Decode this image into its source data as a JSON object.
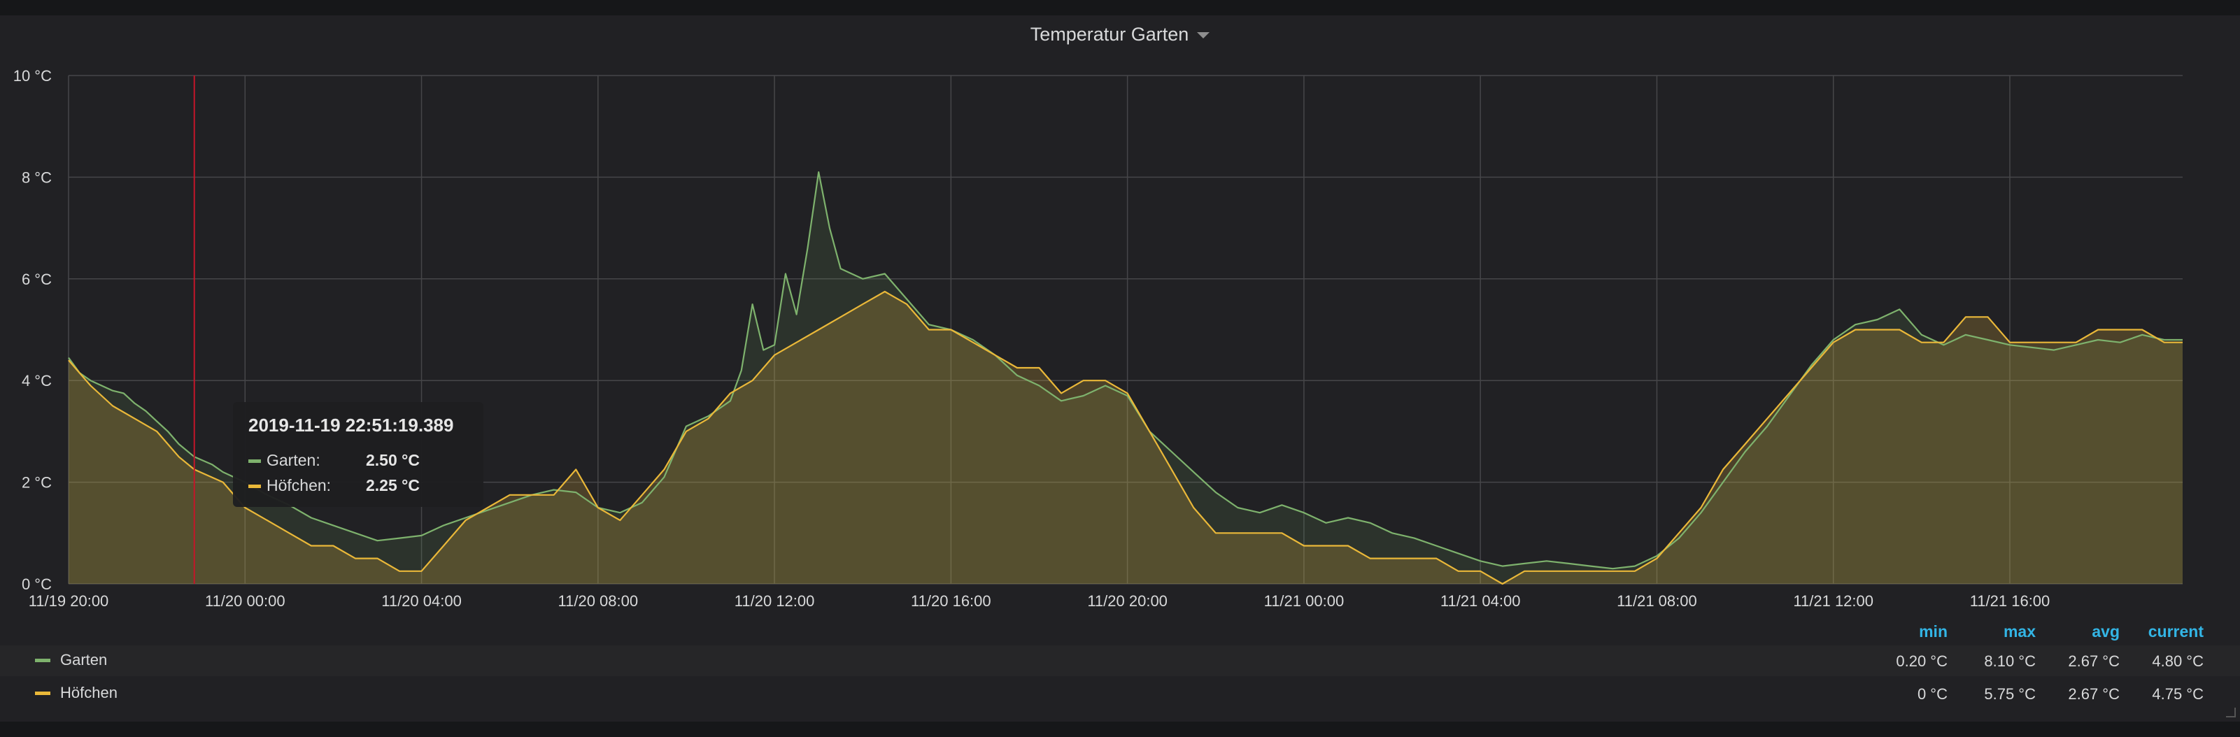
{
  "panel": {
    "title": "Temperatur Garten"
  },
  "chart_data": {
    "type": "line",
    "title": "Temperatur Garten",
    "x_unit": "datetime",
    "x_range": [
      "2019-11-19 20:00",
      "2019-11-21 19:55"
    ],
    "ylim": [
      0,
      10
    ],
    "y_ticks": [
      "0 °C",
      "2 °C",
      "4 °C",
      "6 °C",
      "8 °C",
      "10 °C"
    ],
    "x_ticks": [
      "11/19 20:00",
      "11/20 00:00",
      "11/20 04:00",
      "11/20 08:00",
      "11/20 12:00",
      "11/20 16:00",
      "11/20 20:00",
      "11/21 00:00",
      "11/21 04:00",
      "11/21 08:00",
      "11/21 12:00",
      "11/21 16:00"
    ],
    "grid": true,
    "cursor_time": "2019-11-19 22:51",
    "series": [
      {
        "name": "Garten",
        "color": "#7eb26d",
        "points": [
          [
            "2019-11-19 20:00",
            4.45
          ],
          [
            "2019-11-19 20:15",
            4.15
          ],
          [
            "2019-11-19 20:30",
            4.0
          ],
          [
            "2019-11-19 20:45",
            3.9
          ],
          [
            "2019-11-19 21:00",
            3.8
          ],
          [
            "2019-11-19 21:15",
            3.75
          ],
          [
            "2019-11-19 21:30",
            3.55
          ],
          [
            "2019-11-19 21:45",
            3.4
          ],
          [
            "2019-11-19 22:00",
            3.2
          ],
          [
            "2019-11-19 22:15",
            3.0
          ],
          [
            "2019-11-19 22:30",
            2.75
          ],
          [
            "2019-11-19 22:51",
            2.5
          ],
          [
            "2019-11-19 23:15",
            2.35
          ],
          [
            "2019-11-19 23:30",
            2.2
          ],
          [
            "2019-11-20 00:00",
            2.0
          ],
          [
            "2019-11-20 00:30",
            1.75
          ],
          [
            "2019-11-20 01:00",
            1.55
          ],
          [
            "2019-11-20 01:30",
            1.3
          ],
          [
            "2019-11-20 02:00",
            1.15
          ],
          [
            "2019-11-20 02:30",
            1.0
          ],
          [
            "2019-11-20 03:00",
            0.85
          ],
          [
            "2019-11-20 03:30",
            0.9
          ],
          [
            "2019-11-20 04:00",
            0.95
          ],
          [
            "2019-11-20 04:30",
            1.15
          ],
          [
            "2019-11-20 05:00",
            1.3
          ],
          [
            "2019-11-20 05:30",
            1.45
          ],
          [
            "2019-11-20 06:00",
            1.6
          ],
          [
            "2019-11-20 06:30",
            1.75
          ],
          [
            "2019-11-20 07:00",
            1.85
          ],
          [
            "2019-11-20 07:30",
            1.8
          ],
          [
            "2019-11-20 08:00",
            1.5
          ],
          [
            "2019-11-20 08:30",
            1.4
          ],
          [
            "2019-11-20 09:00",
            1.6
          ],
          [
            "2019-11-20 09:30",
            2.1
          ],
          [
            "2019-11-20 10:00",
            3.1
          ],
          [
            "2019-11-20 10:30",
            3.3
          ],
          [
            "2019-11-20 11:00",
            3.6
          ],
          [
            "2019-11-20 11:15",
            4.2
          ],
          [
            "2019-11-20 11:30",
            5.5
          ],
          [
            "2019-11-20 11:45",
            4.6
          ],
          [
            "2019-11-20 12:00",
            4.7
          ],
          [
            "2019-11-20 12:15",
            6.1
          ],
          [
            "2019-11-20 12:30",
            5.3
          ],
          [
            "2019-11-20 12:45",
            6.6
          ],
          [
            "2019-11-20 13:00",
            8.1
          ],
          [
            "2019-11-20 13:15",
            7.0
          ],
          [
            "2019-11-20 13:30",
            6.2
          ],
          [
            "2019-11-20 14:00",
            6.0
          ],
          [
            "2019-11-20 14:30",
            6.1
          ],
          [
            "2019-11-20 15:00",
            5.6
          ],
          [
            "2019-11-20 15:30",
            5.1
          ],
          [
            "2019-11-20 16:00",
            5.0
          ],
          [
            "2019-11-20 16:30",
            4.8
          ],
          [
            "2019-11-20 17:00",
            4.5
          ],
          [
            "2019-11-20 17:30",
            4.1
          ],
          [
            "2019-11-20 18:00",
            3.9
          ],
          [
            "2019-11-20 18:30",
            3.6
          ],
          [
            "2019-11-20 19:00",
            3.7
          ],
          [
            "2019-11-20 19:30",
            3.9
          ],
          [
            "2019-11-20 20:00",
            3.7
          ],
          [
            "2019-11-20 20:30",
            3.0
          ],
          [
            "2019-11-20 21:00",
            2.6
          ],
          [
            "2019-11-20 21:30",
            2.2
          ],
          [
            "2019-11-20 22:00",
            1.8
          ],
          [
            "2019-11-20 22:30",
            1.5
          ],
          [
            "2019-11-20 23:00",
            1.4
          ],
          [
            "2019-11-20 23:30",
            1.55
          ],
          [
            "2019-11-21 00:00",
            1.4
          ],
          [
            "2019-11-21 00:30",
            1.2
          ],
          [
            "2019-11-21 01:00",
            1.3
          ],
          [
            "2019-11-21 01:30",
            1.2
          ],
          [
            "2019-11-21 02:00",
            1.0
          ],
          [
            "2019-11-21 02:30",
            0.9
          ],
          [
            "2019-11-21 03:00",
            0.75
          ],
          [
            "2019-11-21 03:30",
            0.6
          ],
          [
            "2019-11-21 04:00",
            0.45
          ],
          [
            "2019-11-21 04:30",
            0.35
          ],
          [
            "2019-11-21 05:00",
            0.4
          ],
          [
            "2019-11-21 05:30",
            0.45
          ],
          [
            "2019-11-21 06:00",
            0.4
          ],
          [
            "2019-11-21 06:30",
            0.35
          ],
          [
            "2019-11-21 07:00",
            0.3
          ],
          [
            "2019-11-21 07:30",
            0.35
          ],
          [
            "2019-11-21 08:00",
            0.55
          ],
          [
            "2019-11-21 08:30",
            0.9
          ],
          [
            "2019-11-21 09:00",
            1.4
          ],
          [
            "2019-11-21 09:30",
            2.0
          ],
          [
            "2019-11-21 10:00",
            2.6
          ],
          [
            "2019-11-21 10:30",
            3.1
          ],
          [
            "2019-11-21 11:00",
            3.7
          ],
          [
            "2019-11-21 11:30",
            4.3
          ],
          [
            "2019-11-21 12:00",
            4.8
          ],
          [
            "2019-11-21 12:30",
            5.1
          ],
          [
            "2019-11-21 13:00",
            5.2
          ],
          [
            "2019-11-21 13:30",
            5.4
          ],
          [
            "2019-11-21 14:00",
            4.9
          ],
          [
            "2019-11-21 14:30",
            4.7
          ],
          [
            "2019-11-21 15:00",
            4.9
          ],
          [
            "2019-11-21 15:30",
            4.8
          ],
          [
            "2019-11-21 16:00",
            4.7
          ],
          [
            "2019-11-21 16:30",
            4.65
          ],
          [
            "2019-11-21 17:00",
            4.6
          ],
          [
            "2019-11-21 17:30",
            4.7
          ],
          [
            "2019-11-21 18:00",
            4.8
          ],
          [
            "2019-11-21 18:30",
            4.75
          ],
          [
            "2019-11-21 19:00",
            4.9
          ],
          [
            "2019-11-21 19:30",
            4.8
          ],
          [
            "2019-11-21 19:55",
            4.8
          ]
        ]
      },
      {
        "name": "Höfchen",
        "color": "#eab839",
        "points": [
          [
            "2019-11-19 20:00",
            4.4
          ],
          [
            "2019-11-19 20:30",
            3.9
          ],
          [
            "2019-11-19 21:00",
            3.5
          ],
          [
            "2019-11-19 21:30",
            3.25
          ],
          [
            "2019-11-19 22:00",
            3.0
          ],
          [
            "2019-11-19 22:30",
            2.5
          ],
          [
            "2019-11-19 22:51",
            2.25
          ],
          [
            "2019-11-19 23:30",
            2.0
          ],
          [
            "2019-11-20 00:00",
            1.5
          ],
          [
            "2019-11-20 00:30",
            1.25
          ],
          [
            "2019-11-20 01:00",
            1.0
          ],
          [
            "2019-11-20 01:30",
            0.75
          ],
          [
            "2019-11-20 02:00",
            0.75
          ],
          [
            "2019-11-20 02:30",
            0.5
          ],
          [
            "2019-11-20 03:00",
            0.5
          ],
          [
            "2019-11-20 03:30",
            0.25
          ],
          [
            "2019-11-20 04:00",
            0.25
          ],
          [
            "2019-11-20 04:30",
            0.75
          ],
          [
            "2019-11-20 05:00",
            1.25
          ],
          [
            "2019-11-20 05:30",
            1.5
          ],
          [
            "2019-11-20 06:00",
            1.75
          ],
          [
            "2019-11-20 06:30",
            1.75
          ],
          [
            "2019-11-20 07:00",
            1.75
          ],
          [
            "2019-11-20 07:30",
            2.25
          ],
          [
            "2019-11-20 08:00",
            1.5
          ],
          [
            "2019-11-20 08:30",
            1.25
          ],
          [
            "2019-11-20 09:00",
            1.75
          ],
          [
            "2019-11-20 09:30",
            2.25
          ],
          [
            "2019-11-20 10:00",
            3.0
          ],
          [
            "2019-11-20 10:30",
            3.25
          ],
          [
            "2019-11-20 11:00",
            3.75
          ],
          [
            "2019-11-20 11:30",
            4.0
          ],
          [
            "2019-11-20 12:00",
            4.5
          ],
          [
            "2019-11-20 12:30",
            4.75
          ],
          [
            "2019-11-20 13:00",
            5.0
          ],
          [
            "2019-11-20 13:30",
            5.25
          ],
          [
            "2019-11-20 14:00",
            5.5
          ],
          [
            "2019-11-20 14:30",
            5.75
          ],
          [
            "2019-11-20 15:00",
            5.5
          ],
          [
            "2019-11-20 15:30",
            5.0
          ],
          [
            "2019-11-20 16:00",
            5.0
          ],
          [
            "2019-11-20 16:30",
            4.75
          ],
          [
            "2019-11-20 17:00",
            4.5
          ],
          [
            "2019-11-20 17:30",
            4.25
          ],
          [
            "2019-11-20 18:00",
            4.25
          ],
          [
            "2019-11-20 18:30",
            3.75
          ],
          [
            "2019-11-20 19:00",
            4.0
          ],
          [
            "2019-11-20 19:30",
            4.0
          ],
          [
            "2019-11-20 20:00",
            3.75
          ],
          [
            "2019-11-20 20:30",
            3.0
          ],
          [
            "2019-11-20 21:00",
            2.25
          ],
          [
            "2019-11-20 21:30",
            1.5
          ],
          [
            "2019-11-20 22:00",
            1.0
          ],
          [
            "2019-11-20 22:30",
            1.0
          ],
          [
            "2019-11-20 23:00",
            1.0
          ],
          [
            "2019-11-20 23:30",
            1.0
          ],
          [
            "2019-11-21 00:00",
            0.75
          ],
          [
            "2019-11-21 00:30",
            0.75
          ],
          [
            "2019-11-21 01:00",
            0.75
          ],
          [
            "2019-11-21 01:30",
            0.5
          ],
          [
            "2019-11-21 02:00",
            0.5
          ],
          [
            "2019-11-21 02:30",
            0.5
          ],
          [
            "2019-11-21 03:00",
            0.5
          ],
          [
            "2019-11-21 03:30",
            0.25
          ],
          [
            "2019-11-21 04:00",
            0.25
          ],
          [
            "2019-11-21 04:30",
            0.0
          ],
          [
            "2019-11-21 05:00",
            0.25
          ],
          [
            "2019-11-21 05:30",
            0.25
          ],
          [
            "2019-11-21 06:00",
            0.25
          ],
          [
            "2019-11-21 06:30",
            0.25
          ],
          [
            "2019-11-21 07:00",
            0.25
          ],
          [
            "2019-11-21 07:30",
            0.25
          ],
          [
            "2019-11-21 08:00",
            0.5
          ],
          [
            "2019-11-21 08:30",
            1.0
          ],
          [
            "2019-11-21 09:00",
            1.5
          ],
          [
            "2019-11-21 09:30",
            2.25
          ],
          [
            "2019-11-21 10:00",
            2.75
          ],
          [
            "2019-11-21 10:30",
            3.25
          ],
          [
            "2019-11-21 11:00",
            3.75
          ],
          [
            "2019-11-21 11:30",
            4.25
          ],
          [
            "2019-11-21 12:00",
            4.75
          ],
          [
            "2019-11-21 12:30",
            5.0
          ],
          [
            "2019-11-21 13:00",
            5.0
          ],
          [
            "2019-11-21 13:30",
            5.0
          ],
          [
            "2019-11-21 14:00",
            4.75
          ],
          [
            "2019-11-21 14:30",
            4.75
          ],
          [
            "2019-11-21 15:00",
            5.25
          ],
          [
            "2019-11-21 15:30",
            5.25
          ],
          [
            "2019-11-21 16:00",
            4.75
          ],
          [
            "2019-11-21 16:30",
            4.75
          ],
          [
            "2019-11-21 17:00",
            4.75
          ],
          [
            "2019-11-21 17:30",
            4.75
          ],
          [
            "2019-11-21 18:00",
            5.0
          ],
          [
            "2019-11-21 18:30",
            5.0
          ],
          [
            "2019-11-21 19:00",
            5.0
          ],
          [
            "2019-11-21 19:30",
            4.75
          ],
          [
            "2019-11-21 19:55",
            4.75
          ]
        ]
      }
    ]
  },
  "tooltip": {
    "time": "2019-11-19 22:51:19.389",
    "rows": [
      {
        "name": "Garten:",
        "value": "2.50 °C",
        "color": "#7eb26d"
      },
      {
        "name": "Höfchen:",
        "value": "2.25 °C",
        "color": "#eab839"
      }
    ]
  },
  "legend": {
    "headers": {
      "min": "min",
      "max": "max",
      "avg": "avg",
      "current": "current"
    },
    "rows": [
      {
        "name": "Garten",
        "color": "#7eb26d",
        "min": "0.20 °C",
        "max": "8.10 °C",
        "avg": "2.67 °C",
        "current": "4.80 °C"
      },
      {
        "name": "Höfchen",
        "color": "#eab839",
        "min": "0 °C",
        "max": "5.75 °C",
        "avg": "2.67 °C",
        "current": "4.75 °C"
      }
    ]
  }
}
